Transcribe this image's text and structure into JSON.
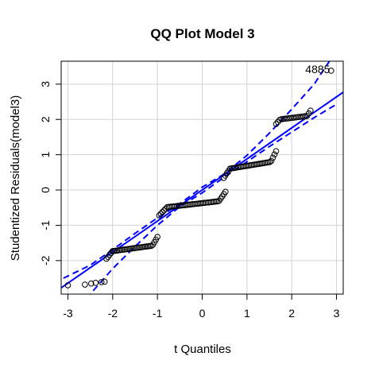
{
  "chart_data": {
    "type": "scatter",
    "title": "QQ Plot Model 3",
    "xlabel": "t Quantiles",
    "ylabel": "Studentized Residuals(model3)",
    "xlim": [
      -3.15,
      3.15
    ],
    "ylim": [
      -2.95,
      3.65
    ],
    "xticks": [
      -3,
      -2,
      -1,
      0,
      1,
      2,
      3
    ],
    "yticks": [
      -2,
      -1,
      0,
      1,
      2,
      3
    ],
    "grid": true,
    "colors": {
      "points": "#000000",
      "reference_line": "#0000ff",
      "envelope": "#0000ff",
      "grid": "#d3d3d3"
    },
    "reference_line": {
      "intercept": 0.0,
      "slope": 0.88
    },
    "envelope": {
      "x": [
        -3.1,
        -2.5,
        -2.0,
        -1.5,
        -1.0,
        -0.5,
        0,
        0.5,
        1.0,
        1.5,
        2.0,
        2.5,
        3.0
      ],
      "lower": [
        -4.05,
        -2.95,
        -2.23,
        -1.6,
        -1.0,
        -0.47,
        -0.08,
        0.37,
        0.8,
        1.23,
        1.64,
        2.05,
        2.43
      ],
      "upper": [
        -2.5,
        -2.13,
        -1.69,
        -1.23,
        -0.79,
        -0.39,
        0.08,
        0.46,
        0.98,
        1.61,
        2.29,
        3.0,
        3.95
      ]
    },
    "point_annotations": [
      {
        "text": "4885",
        "x": 2.58,
        "y": 3.42
      }
    ],
    "points": {
      "clusters": [
        {
          "x": [
            -3.0,
            -2.62,
            -2.48,
            -2.38,
            -2.25,
            -2.18
          ],
          "y": [
            -2.7,
            -2.68,
            -2.65,
            -2.63,
            -2.61,
            -2.6
          ]
        },
        {
          "x_range": [
            -2.14,
            -1.0
          ],
          "y_range": [
            -1.95,
            -1.33
          ],
          "count": 34
        },
        {
          "x_range": [
            -0.96,
            0.52
          ],
          "y_range": [
            -0.72,
            -0.05
          ],
          "count": 42
        },
        {
          "x_range": [
            0.48,
            1.65
          ],
          "y_range": [
            0.34,
            1.1
          ],
          "count": 34
        },
        {
          "x_range": [
            1.65,
            2.42
          ],
          "y_range": [
            1.87,
            2.25
          ],
          "count": 20
        },
        {
          "x": [
            2.88
          ],
          "y": [
            3.38
          ]
        }
      ]
    }
  }
}
